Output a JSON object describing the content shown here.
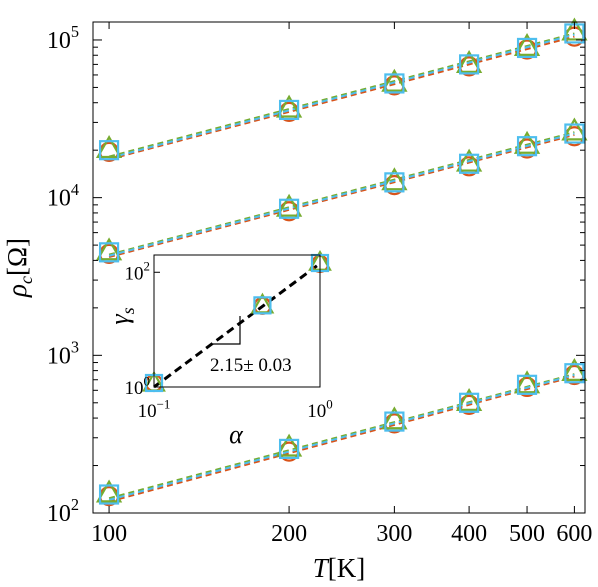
{
  "chart_data": [
    {
      "type": "scatter",
      "xlabel_italic": "T",
      "xlabel_unit": "[K]",
      "ylabel_italic": "ρ",
      "ylabel_sub": "c",
      "ylabel_unit": "[Ω]",
      "xscale": "log",
      "yscale": "log",
      "xlim": [
        94,
        625
      ],
      "ylim": [
        100,
        130000
      ],
      "xticks": [
        {
          "value": 100,
          "label": "100"
        },
        {
          "value": 200,
          "label": "200"
        },
        {
          "value": 300,
          "label": "300"
        },
        {
          "value": 400,
          "label": "400"
        },
        {
          "value": 500,
          "label": "500"
        },
        {
          "value": 600,
          "label": "600"
        }
      ],
      "yticks": [
        {
          "value": 100,
          "base": "10",
          "exp": "2"
        },
        {
          "value": 1000,
          "base": "10",
          "exp": "3"
        },
        {
          "value": 10000,
          "base": "10",
          "exp": "4"
        },
        {
          "value": 100000,
          "base": "10",
          "exp": "5"
        }
      ],
      "x": [
        100,
        200,
        300,
        400,
        500,
        600
      ],
      "series": [
        {
          "color": "#d95319",
          "marker": "circle",
          "group": "top",
          "values": [
            19500,
            35000,
            51500,
            68000,
            87000,
            105000
          ]
        },
        {
          "color": "#77ac30",
          "marker": "triangle",
          "group": "top",
          "values": [
            20500,
            37000,
            54000,
            71000,
            91000,
            114000
          ]
        },
        {
          "color": "#4dbeee",
          "marker": "square",
          "group": "top",
          "values": [
            20000,
            36000,
            53000,
            70000,
            89000,
            110000
          ]
        },
        {
          "color": "#d95319",
          "marker": "circle",
          "group": "middle",
          "values": [
            4400,
            8200,
            12000,
            15800,
            20500,
            24500
          ]
        },
        {
          "color": "#77ac30",
          "marker": "triangle",
          "group": "middle",
          "values": [
            4600,
            8700,
            12800,
            16800,
            21800,
            26500
          ]
        },
        {
          "color": "#4dbeee",
          "marker": "square",
          "group": "middle",
          "values": [
            4500,
            8500,
            12500,
            16400,
            21200,
            25500
          ]
        },
        {
          "color": "#d95319",
          "marker": "circle",
          "group": "bottom",
          "values": [
            128,
            245,
            370,
            485,
            630,
            750
          ]
        },
        {
          "color": "#77ac30",
          "marker": "triangle",
          "group": "bottom",
          "values": [
            134,
            262,
            390,
            510,
            660,
            790
          ]
        },
        {
          "color": "#4dbeee",
          "marker": "square",
          "group": "bottom",
          "values": [
            131,
            255,
            380,
            500,
            650,
            770
          ]
        }
      ],
      "fit_lines": [
        {
          "color": "#d95319",
          "values": [
            17500,
            105000
          ]
        },
        {
          "color": "#77ac30",
          "values": [
            18200,
            110000
          ]
        },
        {
          "color": "#4dbeee",
          "values": [
            17800,
            108000
          ]
        },
        {
          "color": "#d95319",
          "values": [
            4200,
            25000
          ]
        },
        {
          "color": "#77ac30",
          "values": [
            4350,
            26000
          ]
        },
        {
          "color": "#4dbeee",
          "values": [
            4280,
            25500
          ]
        },
        {
          "color": "#d95319",
          "values": [
            118,
            735
          ]
        },
        {
          "color": "#77ac30",
          "values": [
            124,
            760
          ]
        },
        {
          "color": "#4dbeee",
          "values": [
            121,
            750
          ]
        }
      ]
    },
    {
      "type": "scatter",
      "inset": true,
      "xlabel_italic": "α",
      "ylabel_italic": "γ",
      "ylabel_sub": "s",
      "xscale": "log",
      "yscale": "log",
      "xlim": [
        0.1,
        1.0
      ],
      "ylim": [
        1,
        200
      ],
      "xticks": [
        {
          "value": 0.1,
          "base": "10",
          "exp": "−1"
        },
        {
          "value": 1.0,
          "base": "10",
          "exp": "0"
        }
      ],
      "yticks": [
        {
          "value": 1,
          "base": "10",
          "exp": "0"
        },
        {
          "value": 100,
          "base": "10",
          "exp": "2"
        }
      ],
      "x": [
        0.1,
        0.45,
        1.0
      ],
      "series": [
        {
          "color": "#d95319",
          "marker": "circle",
          "values": [
            1.0,
            26,
            140
          ]
        },
        {
          "color": "#77ac30",
          "marker": "triangle",
          "values": [
            1.05,
            27,
            150
          ]
        },
        {
          "color": "#4dbeee",
          "marker": "square",
          "values": [
            1.02,
            26.5,
            145
          ]
        }
      ],
      "fit_line": {
        "color": "#000000",
        "x": [
          0.1,
          1.0
        ],
        "values": [
          1.0,
          142
        ]
      },
      "annotation": "2.15± 0.03"
    }
  ]
}
